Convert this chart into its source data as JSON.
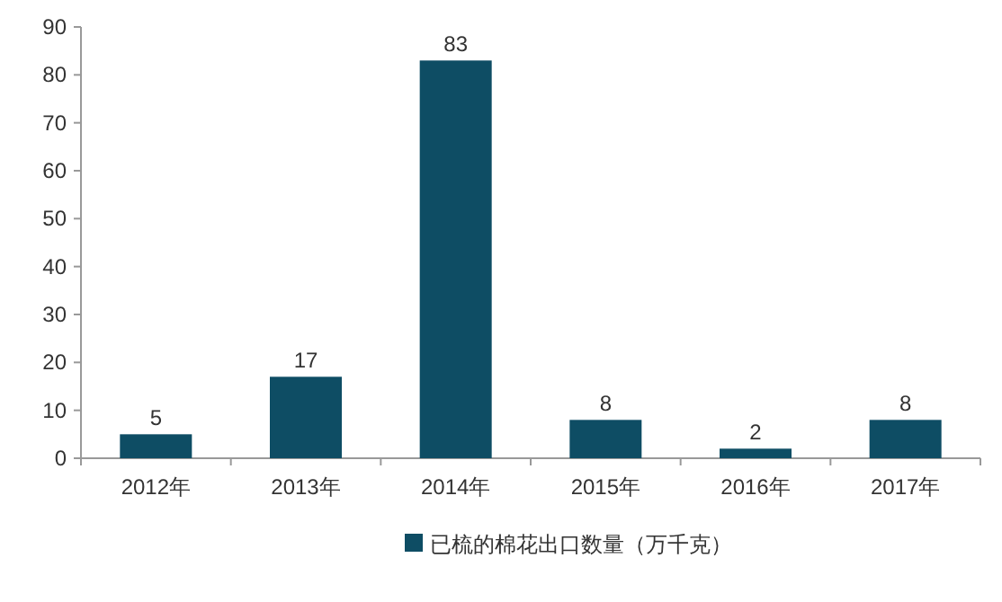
{
  "chart_data": {
    "type": "bar",
    "categories": [
      "2012年",
      "2013年",
      "2014年",
      "2015年",
      "2016年",
      "2017年"
    ],
    "series": [
      {
        "name": "已梳的棉花出口数量（万千克）",
        "color": "#0e4d64",
        "values": [
          5,
          17,
          83,
          8,
          2,
          8
        ]
      }
    ],
    "ylim": [
      0,
      90
    ],
    "yticks": [
      0,
      10,
      20,
      30,
      40,
      50,
      60,
      70,
      80,
      90
    ],
    "data_labels": true,
    "legend": "bottom"
  }
}
